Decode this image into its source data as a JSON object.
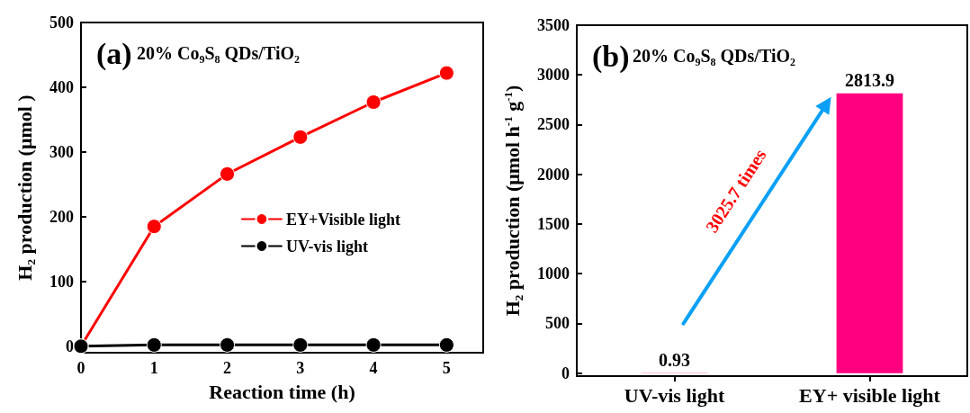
{
  "chart_data": [
    {
      "type": "line",
      "title": "(a)",
      "annotations": [
        "20% Co₉S₈ QDs/TiO₂"
      ],
      "xlabel": "Reaction time (h)",
      "ylabel": "H₂ production (μmol )",
      "x": [
        0,
        1,
        2,
        3,
        4,
        5
      ],
      "xlim": [
        0,
        5.5
      ],
      "xticks": [
        0,
        1,
        2,
        3,
        4,
        5
      ],
      "ylim": [
        -10,
        500
      ],
      "yticks": [
        0,
        100,
        200,
        300,
        400,
        500
      ],
      "series": [
        {
          "name": "EY+Visible light",
          "color": "#ff0000",
          "values": [
            0,
            185,
            266,
            323,
            377,
            422
          ]
        },
        {
          "name": "UV-vis light",
          "color": "#000000",
          "values": [
            0,
            2,
            2,
            2,
            2,
            2
          ]
        }
      ],
      "marker": "circle",
      "line_style": "solid",
      "legend": "center right",
      "grid": false
    },
    {
      "type": "bar",
      "title": "(b)",
      "subtitle": "20% Co₉S₈ QDs/TiO₂",
      "ylabel": "H₂ production (μmol h$^{-1}$ g$^{-1}$)",
      "categories": [
        "UV-vis light",
        "EY+ visible light"
      ],
      "values": [
        0.93,
        2813.9
      ],
      "color": "#ff0080",
      "ylim": [
        -30,
        3500
      ],
      "yticks": [
        0,
        500,
        1000,
        1500,
        2000,
        2500,
        3000,
        3500
      ],
      "data_labels": true,
      "annotations": [
        "3025.7 times"
      ],
      "grid": false
    }
  ]
}
